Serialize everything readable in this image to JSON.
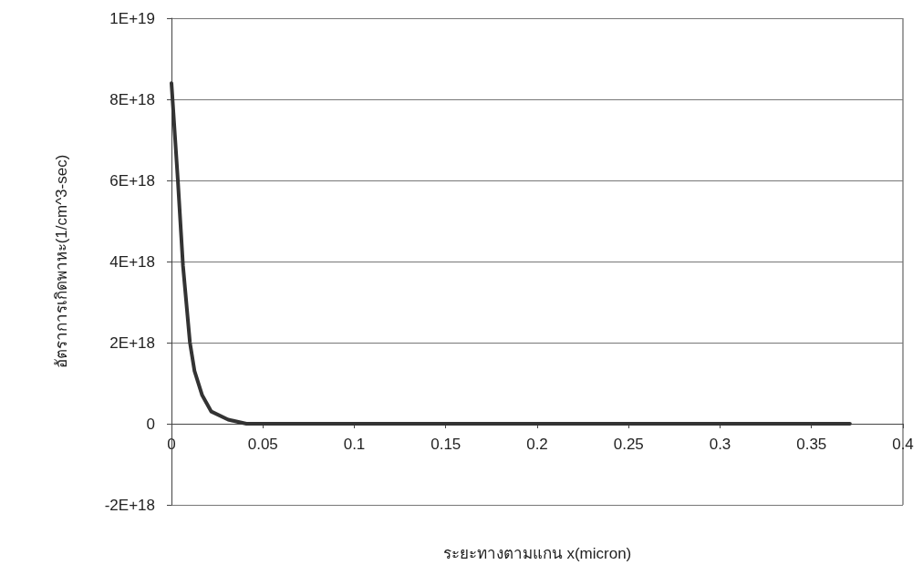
{
  "chart_data": {
    "type": "line",
    "xlabel": "ระยะทางตามแกน x(micron)",
    "ylabel": "อัตราการเกิดพาหะ(1/cm^3-sec)",
    "x": [
      0,
      0.0035,
      0.0063,
      0.0101,
      0.0126,
      0.0168,
      0.0218,
      0.031,
      0.041,
      0.05,
      0.1,
      0.2,
      0.3,
      0.371
    ],
    "series": [
      {
        "color": "#333333",
        "values": [
          8.4e+18,
          6e+18,
          3.9e+18,
          2e+18,
          1.3e+18,
          7e+17,
          3e+17,
          1e+17,
          0,
          0,
          0,
          0,
          0,
          0
        ]
      }
    ],
    "xlim": [
      0,
      0.4
    ],
    "xticks": [
      0,
      0.05,
      0.1,
      0.15,
      0.2,
      0.25,
      0.3,
      0.35,
      0.4
    ],
    "ylim": [
      -2e+18,
      1e+19
    ],
    "yticks": [
      {
        "value": -2e+18,
        "label": "-2E+18"
      },
      {
        "value": 0,
        "label": "0"
      },
      {
        "value": 2e+18,
        "label": "2E+18"
      },
      {
        "value": 4e+18,
        "label": "4E+18"
      },
      {
        "value": 6e+18,
        "label": "6E+18"
      },
      {
        "value": 8e+18,
        "label": "8E+18"
      },
      {
        "value": 1e+19,
        "label": "1E+19"
      }
    ],
    "grid": "y",
    "marker": "none",
    "line_style": "solid"
  }
}
